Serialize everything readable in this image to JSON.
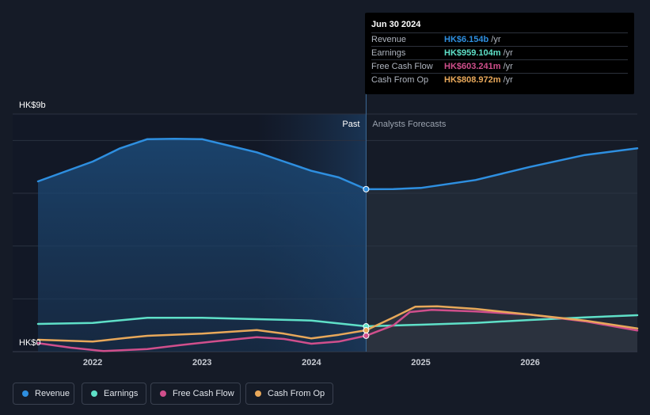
{
  "chart_data": {
    "type": "area",
    "y_top_label": "HK$9b",
    "y_bottom_label": "HK$0",
    "ylim": [
      0,
      9
    ],
    "xlim": [
      2021.5,
      2026.98
    ],
    "grid": true,
    "divider_x": 2024.5,
    "forecast_shade_start": 2023.5,
    "past_label": "Past",
    "forecast_label": "Analysts Forecasts",
    "x_ticks": [
      {
        "x": 2022,
        "label": "2022"
      },
      {
        "x": 2023,
        "label": "2023"
      },
      {
        "x": 2024,
        "label": "2024"
      },
      {
        "x": 2025,
        "label": "2025"
      },
      {
        "x": 2026,
        "label": "2026"
      }
    ],
    "series": [
      {
        "name": "Revenue",
        "color": "#2e8fe0",
        "fill": true,
        "points": [
          [
            2021.5,
            6.45
          ],
          [
            2022.0,
            7.2
          ],
          [
            2022.25,
            7.7
          ],
          [
            2022.5,
            8.05
          ],
          [
            2022.75,
            8.06
          ],
          [
            2023.0,
            8.05
          ],
          [
            2023.25,
            7.8
          ],
          [
            2023.5,
            7.55
          ],
          [
            2023.75,
            7.2
          ],
          [
            2024.0,
            6.85
          ],
          [
            2024.25,
            6.6
          ],
          [
            2024.5,
            6.154
          ],
          [
            2024.75,
            6.16
          ],
          [
            2025.0,
            6.2
          ],
          [
            2025.5,
            6.5
          ],
          [
            2026.0,
            7.0
          ],
          [
            2026.5,
            7.45
          ],
          [
            2026.98,
            7.7
          ]
        ]
      },
      {
        "name": "Earnings",
        "color": "#5fe0c8",
        "fill": false,
        "points": [
          [
            2021.5,
            1.05
          ],
          [
            2022.0,
            1.09
          ],
          [
            2022.5,
            1.28
          ],
          [
            2023.0,
            1.28
          ],
          [
            2023.5,
            1.23
          ],
          [
            2024.0,
            1.18
          ],
          [
            2024.5,
            0.959
          ],
          [
            2025.0,
            1.02
          ],
          [
            2025.5,
            1.09
          ],
          [
            2026.0,
            1.2
          ],
          [
            2026.5,
            1.3
          ],
          [
            2026.98,
            1.38
          ]
        ]
      },
      {
        "name": "Free Cash Flow",
        "color": "#d04f8c",
        "fill": false,
        "points": [
          [
            2021.5,
            0.32
          ],
          [
            2021.8,
            0.15
          ],
          [
            2022.1,
            0.02
          ],
          [
            2022.5,
            0.1
          ],
          [
            2022.8,
            0.25
          ],
          [
            2023.1,
            0.38
          ],
          [
            2023.5,
            0.55
          ],
          [
            2023.75,
            0.48
          ],
          [
            2024.0,
            0.3
          ],
          [
            2024.25,
            0.38
          ],
          [
            2024.5,
            0.603
          ],
          [
            2024.75,
            1.0
          ],
          [
            2024.9,
            1.5
          ],
          [
            2025.1,
            1.58
          ],
          [
            2025.5,
            1.52
          ],
          [
            2026.0,
            1.4
          ],
          [
            2026.5,
            1.15
          ],
          [
            2026.98,
            0.8
          ]
        ]
      },
      {
        "name": "Cash From Op",
        "color": "#e8a85a",
        "fill": false,
        "points": [
          [
            2021.5,
            0.45
          ],
          [
            2022.0,
            0.38
          ],
          [
            2022.3,
            0.52
          ],
          [
            2022.5,
            0.6
          ],
          [
            2023.0,
            0.68
          ],
          [
            2023.25,
            0.75
          ],
          [
            2023.5,
            0.82
          ],
          [
            2023.75,
            0.68
          ],
          [
            2024.0,
            0.5
          ],
          [
            2024.25,
            0.64
          ],
          [
            2024.5,
            0.809
          ],
          [
            2024.75,
            1.3
          ],
          [
            2024.95,
            1.7
          ],
          [
            2025.15,
            1.72
          ],
          [
            2025.5,
            1.62
          ],
          [
            2026.0,
            1.4
          ],
          [
            2026.5,
            1.18
          ],
          [
            2026.98,
            0.88
          ]
        ]
      }
    ],
    "markers": [
      {
        "series": 0,
        "x": 2024.5,
        "y": 6.154
      },
      {
        "series": 1,
        "x": 2024.5,
        "y": 0.959
      },
      {
        "series": 2,
        "x": 2024.5,
        "y": 0.603
      },
      {
        "series": 3,
        "x": 2024.5,
        "y": 0.809
      }
    ]
  },
  "tooltip": {
    "date": "Jun 30 2024",
    "rows": [
      {
        "label": "Revenue",
        "value": "HK$6.154b",
        "unit": "/yr",
        "color": "#2e8fe0"
      },
      {
        "label": "Earnings",
        "value": "HK$959.104m",
        "unit": "/yr",
        "color": "#5fe0c8"
      },
      {
        "label": "Free Cash Flow",
        "value": "HK$603.241m",
        "unit": "/yr",
        "color": "#d04f8c"
      },
      {
        "label": "Cash From Op",
        "value": "HK$808.972m",
        "unit": "/yr",
        "color": "#e8a85a"
      }
    ]
  },
  "legend": [
    {
      "label": "Revenue",
      "color": "#2e8fe0"
    },
    {
      "label": "Earnings",
      "color": "#5fe0c8"
    },
    {
      "label": "Free Cash Flow",
      "color": "#d04f8c"
    },
    {
      "label": "Cash From Op",
      "color": "#e8a85a"
    }
  ]
}
